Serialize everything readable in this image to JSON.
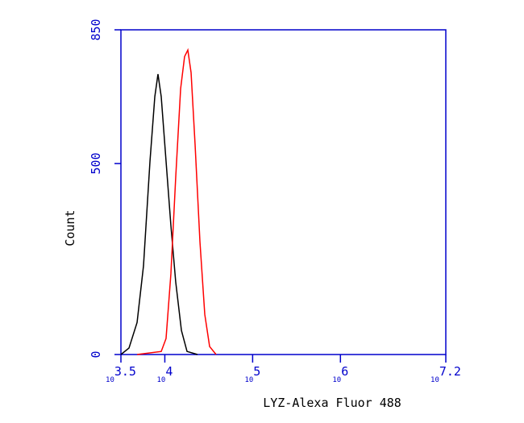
{
  "chart_data": {
    "type": "line",
    "x_label": "LYZ-Alexa Fluor 488",
    "y_label": "Count",
    "xscale": "log",
    "xlim": [
      3162.3,
      15848932
    ],
    "ylim": [
      0,
      850
    ],
    "xticks": [
      {
        "value": 3162.3,
        "label": "10",
        "exponent": "3.5"
      },
      {
        "value": 10000,
        "label": "10",
        "exponent": "4"
      },
      {
        "value": 100000,
        "label": "10",
        "exponent": "5"
      },
      {
        "value": 1000000,
        "label": "10",
        "exponent": "6"
      },
      {
        "value": 15848932,
        "label": "10",
        "exponent": "7.2"
      }
    ],
    "yticks": [
      0,
      500,
      850
    ],
    "axis_color": "#0000cc",
    "series": [
      {
        "color": "#000000",
        "x": [
          3162,
          3908,
          4831,
          5715,
          6776,
          7691,
          8356,
          9099,
          10328,
          11722,
          13305,
          15453,
          17906,
          23550
        ],
        "values": [
          0,
          17,
          84,
          232,
          506,
          675,
          734,
          675,
          506,
          338,
          190,
          63,
          8,
          0
        ]
      },
      {
        "color": "#ff0000",
        "x": [
          4831,
          9099,
          10328,
          11722,
          13305,
          15136,
          16788,
          18281,
          19907,
          22131,
          25119,
          28510,
          32359,
          38371
        ],
        "values": [
          0,
          8,
          42,
          211,
          464,
          696,
          780,
          797,
          738,
          548,
          295,
          105,
          21,
          0
        ]
      }
    ]
  }
}
